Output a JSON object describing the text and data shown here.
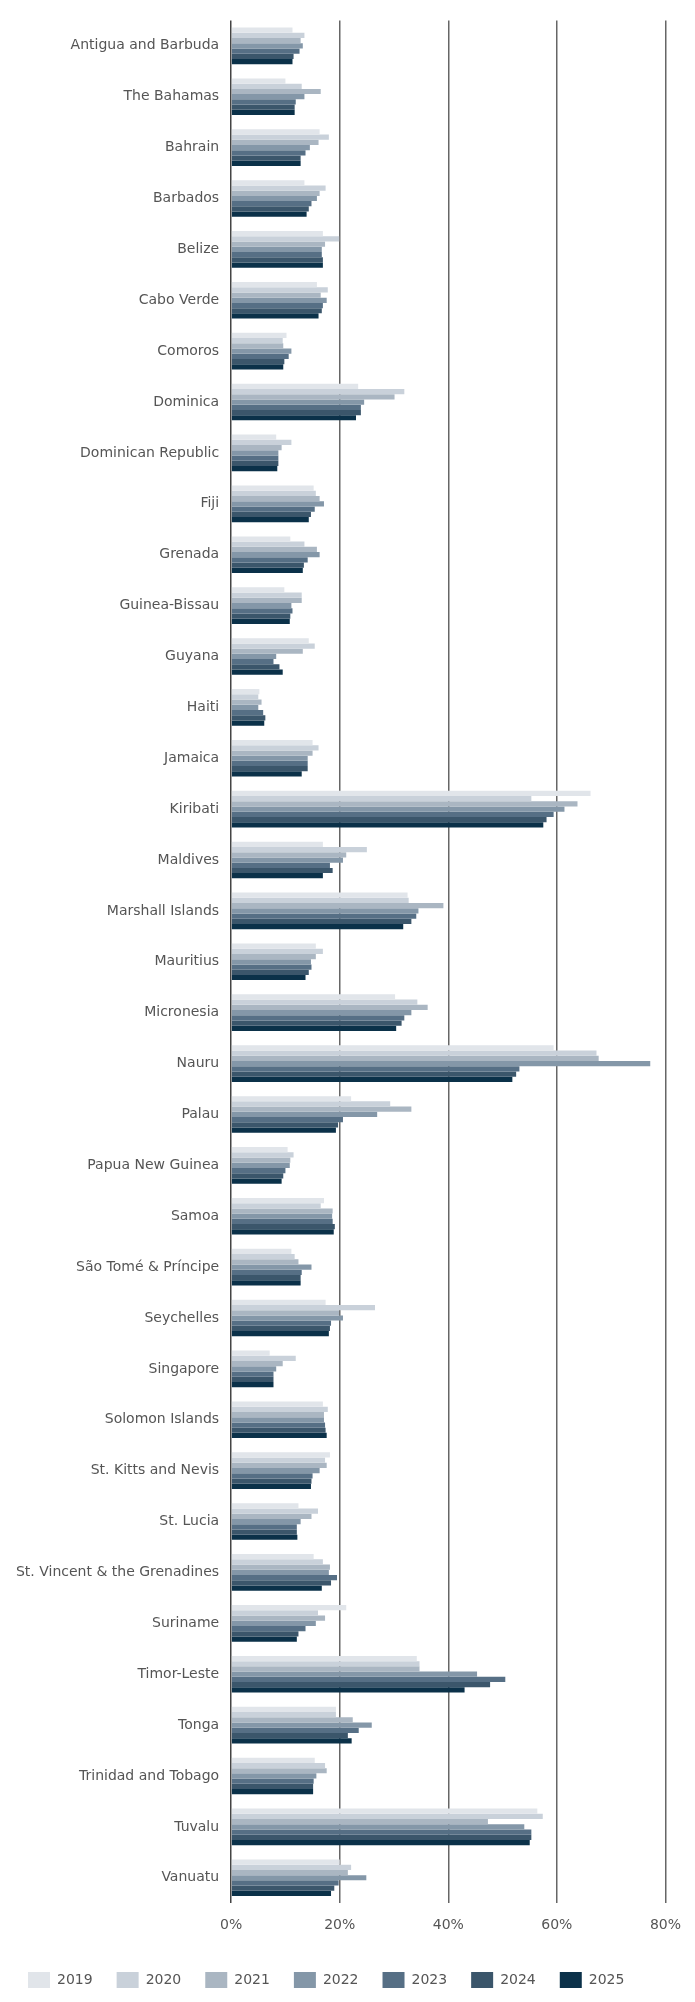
{
  "chart_data": {
    "type": "bar",
    "orientation": "horizontal",
    "categories": [
      "Antigua and Barbuda",
      "The Bahamas",
      "Bahrain",
      "Barbados",
      "Belize",
      "Cabo Verde",
      "Comoros",
      "Dominica",
      "Dominican Republic",
      "Fiji",
      "Grenada",
      "Guinea-Bissau",
      "Guyana",
      "Haiti",
      "Jamaica",
      "Kiribati",
      "Maldives",
      "Marshall Islands",
      "Mauritius",
      "Micronesia",
      "Nauru",
      "Palau",
      "Papua New Guinea",
      "Samoa",
      "São Tomé & Príncipe",
      "Seychelles",
      "Singapore",
      "Solomon Islands",
      "St. Kitts and Nevis",
      "St. Lucia",
      "St. Vincent & the Grenadines",
      "Suriname",
      "Timor-Leste",
      "Tonga",
      "Trinidad and Tobago",
      "Tuvalu",
      "Vanuatu"
    ],
    "series": [
      {
        "name": "2019",
        "color": "#e1e5ea",
        "values": [
          11.3,
          10.0,
          16.3,
          13.5,
          16.9,
          15.8,
          10.2,
          23.4,
          8.3,
          15.2,
          10.9,
          9.8,
          14.3,
          5.2,
          15.0,
          66.2,
          16.9,
          32.5,
          15.6,
          30.2,
          59.4,
          22.1,
          10.4,
          17.1,
          11.1,
          17.4,
          7.1,
          16.9,
          18.2,
          12.4,
          15.2,
          21.2,
          34.2,
          19.3,
          15.4,
          56.4,
          20.0
        ]
      },
      {
        "name": "2020",
        "color": "#c9d1da",
        "values": [
          13.5,
          13.0,
          18.0,
          17.4,
          19.9,
          17.8,
          9.5,
          31.9,
          11.1,
          15.6,
          13.5,
          13.0,
          15.4,
          5.0,
          16.1,
          55.3,
          25.0,
          32.7,
          16.9,
          34.3,
          67.3,
          29.3,
          11.5,
          16.5,
          11.7,
          26.5,
          11.9,
          17.8,
          17.3,
          16.0,
          16.9,
          16.0,
          34.7,
          19.3,
          17.3,
          57.4,
          22.1
        ]
      },
      {
        "name": "2021",
        "color": "#aab6c2",
        "values": [
          12.8,
          16.5,
          16.1,
          16.3,
          17.3,
          16.5,
          9.6,
          30.1,
          9.3,
          16.3,
          15.8,
          13.0,
          13.2,
          5.6,
          15.0,
          63.8,
          21.2,
          39.1,
          15.6,
          36.2,
          67.7,
          33.2,
          10.9,
          18.7,
          12.4,
          19.9,
          9.5,
          17.1,
          17.6,
          14.8,
          18.2,
          17.3,
          34.7,
          22.4,
          17.6,
          47.3,
          21.5
        ]
      },
      {
        "name": "2022",
        "color": "#8497a8",
        "values": [
          13.2,
          13.5,
          14.5,
          15.8,
          16.7,
          17.6,
          11.1,
          24.5,
          8.7,
          17.1,
          16.3,
          11.1,
          8.3,
          5.0,
          14.1,
          61.4,
          20.6,
          34.5,
          14.7,
          33.2,
          77.2,
          26.9,
          10.8,
          18.6,
          14.8,
          20.6,
          8.3,
          17.1,
          16.3,
          12.8,
          18.0,
          15.6,
          45.3,
          25.9,
          15.7,
          54.0,
          24.9
        ]
      },
      {
        "name": "2023",
        "color": "#566f85",
        "values": [
          12.6,
          11.9,
          13.7,
          14.8,
          16.7,
          16.9,
          10.6,
          23.9,
          8.7,
          15.4,
          14.1,
          11.3,
          7.8,
          5.9,
          14.1,
          59.4,
          18.2,
          34.1,
          14.8,
          31.9,
          53.1,
          20.6,
          10.0,
          18.7,
          13.0,
          18.4,
          7.8,
          17.3,
          15.0,
          12.1,
          19.5,
          13.7,
          50.5,
          23.5,
          15.2,
          55.3,
          19.8
        ]
      },
      {
        "name": "2024",
        "color": "#3b566b",
        "values": [
          11.5,
          11.7,
          12.8,
          14.3,
          16.9,
          16.7,
          9.8,
          23.9,
          8.7,
          14.7,
          13.4,
          10.9,
          8.9,
          6.3,
          14.1,
          58.1,
          18.7,
          33.2,
          14.3,
          31.4,
          52.5,
          19.7,
          9.6,
          19.1,
          12.8,
          18.2,
          7.8,
          17.4,
          14.8,
          12.1,
          18.4,
          12.4,
          47.7,
          21.5,
          15.1,
          55.3,
          19.0
        ]
      },
      {
        "name": "2025",
        "color": "#0b3149",
        "values": [
          11.3,
          11.7,
          12.8,
          13.9,
          16.9,
          16.1,
          9.6,
          23.0,
          8.5,
          14.3,
          13.2,
          10.8,
          9.5,
          6.1,
          13.0,
          57.5,
          16.9,
          31.7,
          13.7,
          30.4,
          51.8,
          19.3,
          9.3,
          18.9,
          12.8,
          18.0,
          7.8,
          17.6,
          14.7,
          12.2,
          16.7,
          12.1,
          43.0,
          22.2,
          15.1,
          55.0,
          18.4
        ]
      }
    ],
    "xlim": [
      0,
      80
    ],
    "xticks": [
      {
        "value": 0,
        "label": "0%"
      },
      {
        "value": 20,
        "label": "20%"
      },
      {
        "value": 40,
        "label": "40%"
      },
      {
        "value": 60,
        "label": "60%"
      },
      {
        "value": 80,
        "label": "80%"
      }
    ],
    "grid": "x",
    "legend": "bottom left"
  }
}
